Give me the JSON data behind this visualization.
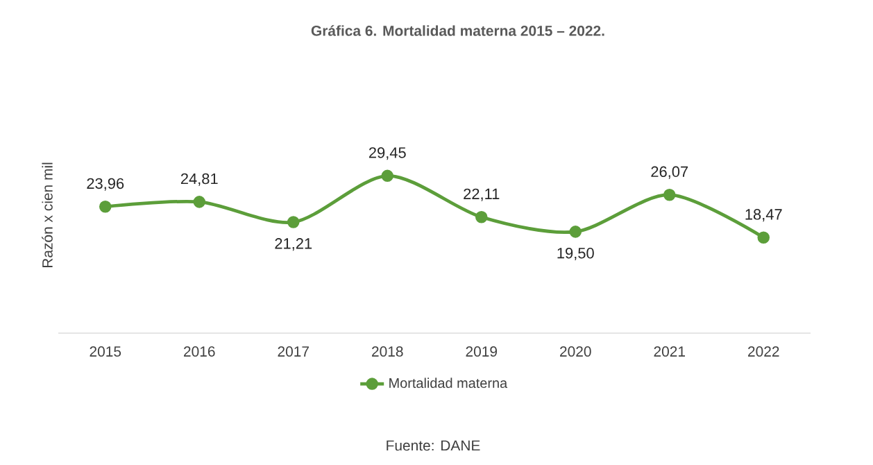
{
  "chart_data": {
    "type": "line",
    "title": "Gráfica 6. Mortalidad materna 2015 – 2022.",
    "ylabel": "Razón x cien mil",
    "categories": [
      "2015",
      "2016",
      "2017",
      "2018",
      "2019",
      "2020",
      "2021",
      "2022"
    ],
    "series": [
      {
        "name": "Mortalidad materna",
        "color": "#5c9e3a",
        "values": [
          23.96,
          24.81,
          21.21,
          29.45,
          22.11,
          19.5,
          26.07,
          18.47
        ],
        "value_labels": [
          "23,96",
          "24,81",
          "21,21",
          "29,45",
          "22,11",
          "19,50",
          "26,07",
          "18,47"
        ]
      }
    ],
    "tick_labels": "x",
    "marker": "circle",
    "line_style": "solid",
    "legend": "bottom",
    "grid": false,
    "annotations": [
      "Fuente: DANE"
    ]
  }
}
